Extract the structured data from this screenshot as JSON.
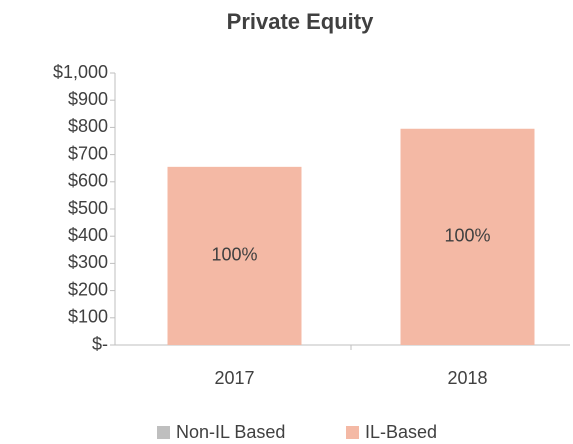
{
  "chart_data": {
    "type": "stacked_bar",
    "title": "Private Equity",
    "categories": [
      "2017",
      "2018"
    ],
    "series": [
      {
        "name": "Non-IL Based",
        "color": "#bfbfbf",
        "values": [
          0,
          0
        ]
      },
      {
        "name": "IL-Based",
        "color": "#f4b9a5",
        "values": [
          655,
          795
        ],
        "share_labels": [
          "100%",
          "100%"
        ]
      }
    ],
    "ylim": [
      0,
      1000
    ],
    "yticks": [
      {
        "value": 0,
        "label": "$-"
      },
      {
        "value": 100,
        "label": "$100"
      },
      {
        "value": 200,
        "label": "$200"
      },
      {
        "value": 300,
        "label": "$300"
      },
      {
        "value": 400,
        "label": "$400"
      },
      {
        "value": 500,
        "label": "$500"
      },
      {
        "value": 600,
        "label": "$600"
      },
      {
        "value": 700,
        "label": "$700"
      },
      {
        "value": 800,
        "label": "$800"
      },
      {
        "value": 900,
        "label": "$900"
      },
      {
        "value": 1000,
        "label": "$1,000"
      }
    ],
    "legend": "bottom"
  }
}
